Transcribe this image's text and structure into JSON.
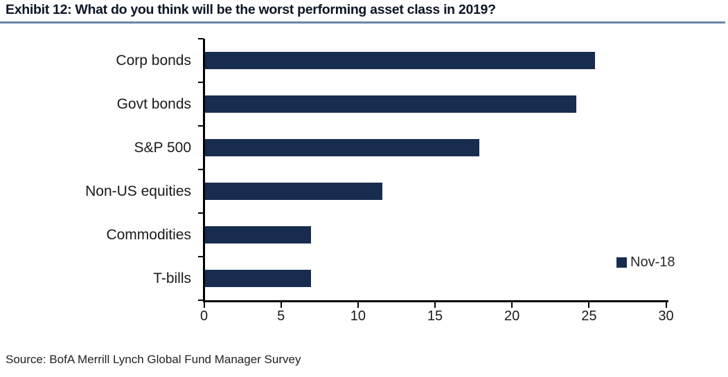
{
  "header": {
    "title": "Exhibit 12: What do you think will be the worst performing asset class in 2019?"
  },
  "footer": {
    "source": "Source: BofA Merrill Lynch Global Fund Manager Survey"
  },
  "legend": {
    "label": "Nov-18"
  },
  "colors": {
    "bar": "#172c4f",
    "axis": "#000000",
    "title_underline": "#6e84a3",
    "text": "#1a1a1a"
  },
  "chart_data": {
    "type": "bar",
    "orientation": "horizontal",
    "title": "Exhibit 12: What do you think will be the worst performing asset class in 2019?",
    "categories": [
      "Corp bonds",
      "Govt bonds",
      "S&P 500",
      "Non-US equities",
      "Commodities",
      "T-bills"
    ],
    "series": [
      {
        "name": "Nov-18",
        "color": "#172c4f",
        "values": [
          25.3,
          24.1,
          17.8,
          11.5,
          6.9,
          6.9
        ]
      }
    ],
    "xlabel": "",
    "ylabel": "",
    "xlim": [
      0,
      30
    ],
    "xticks": [
      0,
      5,
      10,
      15,
      20,
      25,
      30
    ],
    "grid": false,
    "legend_position": "right"
  }
}
